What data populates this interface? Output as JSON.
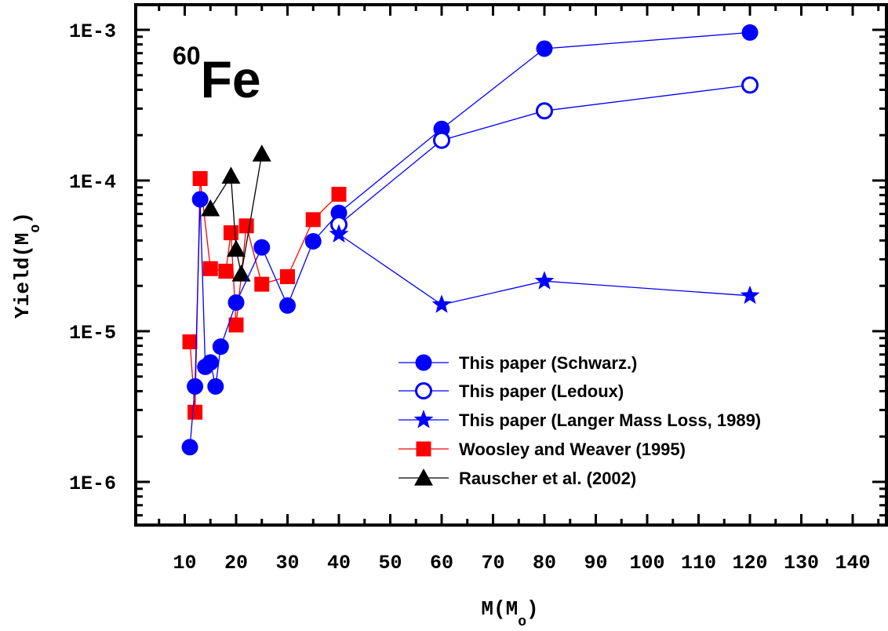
{
  "chart_data": {
    "type": "line",
    "title_superscript": "60",
    "title": "Fe",
    "xlabel": {
      "main": "M(M",
      "sub": "o",
      "close": ")"
    },
    "ylabel": {
      "main": "Yield(M",
      "sub": "o",
      "close": ")"
    },
    "xlim": [
      0,
      150
    ],
    "ylim_log10": [
      -6.3,
      -2.83
    ],
    "yscale": "log",
    "grid": false,
    "legend_position": "bottom-right",
    "x_ticks": [
      "10",
      "20",
      "30",
      "40",
      "50",
      "60",
      "70",
      "80",
      "90",
      "100",
      "110",
      "120",
      "130",
      "140"
    ],
    "x_tick_values": [
      10,
      20,
      30,
      40,
      50,
      60,
      70,
      80,
      90,
      100,
      110,
      120,
      130,
      140
    ],
    "y_ticks": [
      "1E-6",
      "1E-5",
      "1E-4",
      "1E-3"
    ],
    "y_tick_values": [
      1e-06,
      1e-05,
      0.0001,
      0.001
    ],
    "series": [
      {
        "name": "This paper (Schwarz.)",
        "color": "#0000ff",
        "marker": "circle-filled",
        "x": [
          11,
          12,
          13,
          14,
          15,
          16,
          17,
          20,
          25,
          30,
          35,
          40,
          60,
          80,
          120
        ],
        "y": [
          1.7e-06,
          4.3e-06,
          7.5e-05,
          5.8e-06,
          6.2e-06,
          4.3e-06,
          7.9e-06,
          1.55e-05,
          3.6e-05,
          1.48e-05,
          3.95e-05,
          6.1e-05,
          0.00022,
          0.00075,
          0.00096
        ]
      },
      {
        "name": "This paper (Ledoux)",
        "color": "#0000ff",
        "marker": "circle-open",
        "x": [
          40,
          60,
          80,
          120
        ],
        "y": [
          5.1e-05,
          0.000185,
          0.00029,
          0.00043
        ]
      },
      {
        "name": "This paper (Langer Mass Loss, 1989)",
        "color": "#0000ff",
        "marker": "star",
        "x": [
          40,
          60,
          80,
          120
        ],
        "y": [
          4.4e-05,
          1.5e-05,
          2.15e-05,
          1.72e-05
        ]
      },
      {
        "name": "Woosley and Weaver (1995)",
        "color": "#ff0000",
        "marker": "square",
        "x": [
          11,
          12,
          13,
          15,
          18,
          19,
          20,
          22,
          25,
          30,
          35,
          40
        ],
        "y": [
          8.5e-06,
          2.9e-06,
          0.000103,
          2.6e-05,
          2.5e-05,
          4.5e-05,
          1.1e-05,
          5e-05,
          2.05e-05,
          2.3e-05,
          5.5e-05,
          8.1e-05
        ]
      },
      {
        "name": "Rauscher et al. (2002)",
        "color": "#000000",
        "marker": "triangle",
        "x": [
          15,
          19,
          20,
          21,
          25
        ],
        "y": [
          6.5e-05,
          0.000107,
          3.5e-05,
          2.4e-05,
          0.00015
        ]
      }
    ]
  }
}
